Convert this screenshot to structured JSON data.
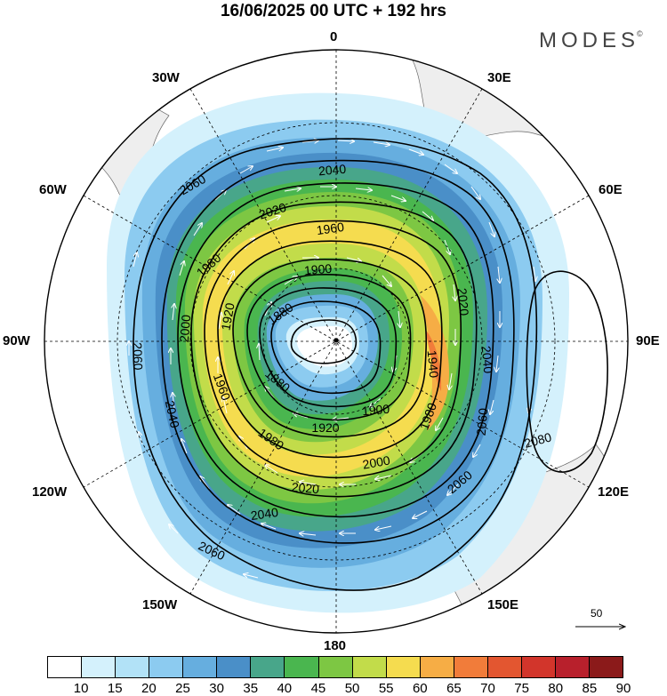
{
  "title": "16/06/2025  00 UTC  + 192 hrs",
  "brand": "MODES",
  "brand_mark": "©",
  "longitude_labels": {
    "lon_0": "0",
    "lon_30e": "30E",
    "lon_60e": "60E",
    "lon_90e": "90E",
    "lon_120e": "120E",
    "lon_150e": "150E",
    "lon_180": "180",
    "lon_150w": "150W",
    "lon_120w": "120W",
    "lon_90w": "90W",
    "lon_60w": "60W",
    "lon_30w": "30W"
  },
  "contour_labels": [
    "2060",
    "2040",
    "2020",
    "1980",
    "1960",
    "1900",
    "1880",
    "2000",
    "1920",
    "1960",
    "1880",
    "1900",
    "1920",
    "1980",
    "2000",
    "1940",
    "2020",
    "2040",
    "2060",
    "2080",
    "2040",
    "2020",
    "2060",
    "2040",
    "2060",
    "2060",
    "1980"
  ],
  "reference_vector": {
    "label": "50"
  },
  "colorbar": {
    "ticks": [
      "10",
      "15",
      "20",
      "25",
      "30",
      "35",
      "40",
      "45",
      "50",
      "55",
      "60",
      "65",
      "70",
      "75",
      "80",
      "85",
      "90"
    ],
    "colors": [
      "#ffffff",
      "#d4f1fc",
      "#b2e2f7",
      "#8ccbf0",
      "#66aedf",
      "#4a8fc8",
      "#48a68a",
      "#4ab64f",
      "#7dc743",
      "#c2dc4a",
      "#f5dc4f",
      "#f6ad45",
      "#f17c3a",
      "#e35630",
      "#d2352b",
      "#b8202c",
      "#8b1a1a"
    ]
  },
  "wind_color_scale": {
    "c10": "#d4f1fc",
    "c20": "#8ccbf0",
    "c30": "#66aedf",
    "c35": "#4a8fc8",
    "c40": "#48a68a",
    "c45": "#4ab64f",
    "c50": "#7dc743",
    "c55": "#c2dc4a",
    "c60": "#f5dc4f",
    "c65": "#f6ad45",
    "c70": "#f17c3a"
  }
}
